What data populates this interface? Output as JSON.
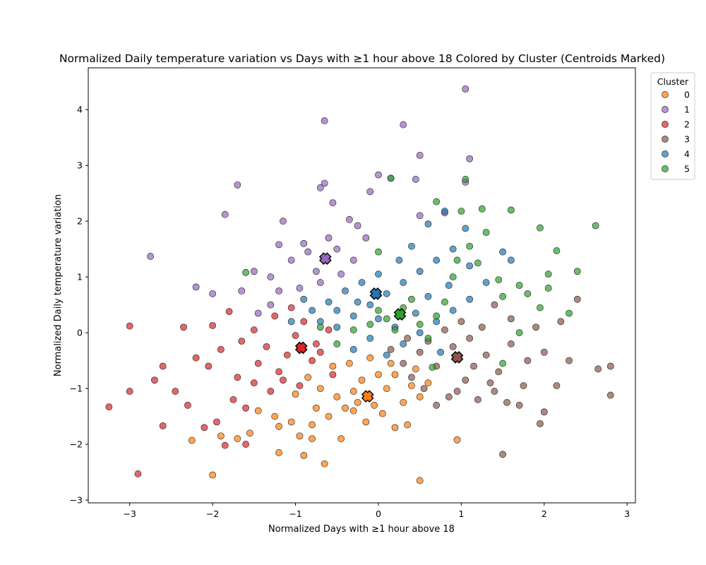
{
  "chart_data": {
    "type": "scatter",
    "title": "Normalized Daily temperature variation vs Days with ≥1 hour above 18 Colored by Cluster (Centroids Marked)",
    "xlabel": "Normalized Days with ≥1 hour above 18",
    "ylabel": "Normalized Daily temperature variation",
    "xlim": [
      -3.5,
      3.1
    ],
    "ylim": [
      -3.05,
      4.75
    ],
    "xticks": [
      -3,
      -2,
      -1,
      0,
      1,
      2,
      3
    ],
    "yticks": [
      -3,
      -2,
      -1,
      0,
      1,
      2,
      3,
      4
    ],
    "grid": false,
    "legend": {
      "title": "Cluster",
      "placement": "top-right outside"
    },
    "series": [
      {
        "name": "0",
        "color": "#ff7f0e",
        "centroid": [
          -0.13,
          -1.14
        ],
        "points": [
          [
            -0.95,
            -1.85
          ],
          [
            -1.2,
            -2.15
          ],
          [
            -1.05,
            -1.6
          ],
          [
            -0.8,
            -1.9
          ],
          [
            -0.6,
            -1.5
          ],
          [
            -0.4,
            -1.35
          ],
          [
            -0.3,
            -1.05
          ],
          [
            -0.2,
            -0.85
          ],
          [
            -0.05,
            -1.3
          ],
          [
            0.1,
            -1.0
          ],
          [
            0.2,
            -0.75
          ],
          [
            0.3,
            -1.25
          ],
          [
            0.4,
            -0.95
          ],
          [
            0.5,
            -1.15
          ],
          [
            -0.7,
            -1.0
          ],
          [
            -0.85,
            -0.8
          ],
          [
            -1.0,
            -1.1
          ],
          [
            -1.25,
            -1.5
          ],
          [
            -1.45,
            -1.4
          ],
          [
            -1.7,
            -1.9
          ],
          [
            -2.0,
            -2.55
          ],
          [
            -1.9,
            -1.85
          ],
          [
            -1.55,
            -1.8
          ],
          [
            -0.9,
            -2.2
          ],
          [
            -0.65,
            -2.35
          ],
          [
            -0.45,
            -1.9
          ],
          [
            -0.15,
            -1.6
          ],
          [
            0.05,
            -1.45
          ],
          [
            0.35,
            -1.65
          ],
          [
            0.2,
            -1.7
          ],
          [
            -0.55,
            -0.6
          ],
          [
            -0.35,
            -0.55
          ],
          [
            -0.1,
            -0.45
          ],
          [
            0.15,
            -0.55
          ],
          [
            0.45,
            -0.65
          ],
          [
            0.6,
            -0.9
          ],
          [
            -0.25,
            -1.25
          ],
          [
            -0.5,
            -1.15
          ],
          [
            -0.75,
            -1.35
          ],
          [
            0.0,
            -0.75
          ],
          [
            0.5,
            -2.65
          ],
          [
            0.95,
            -1.92
          ],
          [
            -2.25,
            -1.93
          ],
          [
            -1.2,
            -1.68
          ],
          [
            -0.3,
            -1.4
          ],
          [
            -0.8,
            -1.65
          ]
        ]
      },
      {
        "name": "1",
        "color": "#9467bd",
        "centroid": [
          -0.64,
          1.33
        ],
        "points": [
          [
            1.05,
            4.37
          ],
          [
            -0.65,
            3.8
          ],
          [
            0.3,
            3.73
          ],
          [
            -0.65,
            2.68
          ],
          [
            -0.7,
            2.6
          ],
          [
            -1.7,
            2.65
          ],
          [
            -0.55,
            2.33
          ],
          [
            -1.85,
            2.12
          ],
          [
            -2.75,
            1.37
          ],
          [
            -0.1,
            2.53
          ],
          [
            0.0,
            2.83
          ],
          [
            0.15,
            2.77
          ],
          [
            0.5,
            3.18
          ],
          [
            1.1,
            3.12
          ],
          [
            1.05,
            2.7
          ],
          [
            0.45,
            2.75
          ],
          [
            -0.35,
            2.03
          ],
          [
            -0.25,
            1.92
          ],
          [
            -0.15,
            1.7
          ],
          [
            -1.15,
            2.0
          ],
          [
            -1.2,
            1.58
          ],
          [
            -0.9,
            1.6
          ],
          [
            -0.5,
            1.5
          ],
          [
            -0.3,
            1.3
          ],
          [
            -0.85,
            1.45
          ],
          [
            -0.75,
            1.1
          ],
          [
            -1.05,
            1.3
          ],
          [
            -1.3,
            1.0
          ],
          [
            -1.5,
            1.1
          ],
          [
            -1.65,
            0.75
          ],
          [
            -2.0,
            0.7
          ],
          [
            -2.2,
            0.82
          ],
          [
            -1.2,
            0.75
          ],
          [
            -0.95,
            0.8
          ],
          [
            -0.7,
            0.9
          ],
          [
            -0.45,
            1.05
          ],
          [
            -0.6,
            1.7
          ],
          [
            0.5,
            2.1
          ],
          [
            0.8,
            2.15
          ],
          [
            -1.3,
            0.5
          ],
          [
            -1.45,
            0.35
          ]
        ]
      },
      {
        "name": "2",
        "color": "#d62728",
        "centroid": [
          -0.93,
          -0.27
        ],
        "points": [
          [
            -3.25,
            -1.33
          ],
          [
            -3.0,
            0.12
          ],
          [
            -3.0,
            -1.05
          ],
          [
            -2.9,
            -2.53
          ],
          [
            -2.6,
            -1.67
          ],
          [
            -2.45,
            -1.05
          ],
          [
            -2.3,
            -1.3
          ],
          [
            -2.2,
            -0.45
          ],
          [
            -2.05,
            -0.6
          ],
          [
            -1.95,
            -1.6
          ],
          [
            -1.85,
            -2.02
          ],
          [
            -1.75,
            -1.2
          ],
          [
            -1.7,
            -0.8
          ],
          [
            -1.6,
            -1.35
          ],
          [
            -1.5,
            -0.9
          ],
          [
            -1.45,
            -0.55
          ],
          [
            -1.35,
            -0.25
          ],
          [
            -1.3,
            -1.05
          ],
          [
            -1.2,
            -0.7
          ],
          [
            -1.1,
            -0.4
          ],
          [
            -1.0,
            -0.05
          ],
          [
            -0.9,
            0.2
          ],
          [
            -0.8,
            -0.5
          ],
          [
            -0.7,
            -0.35
          ],
          [
            -0.6,
            0.05
          ],
          [
            -0.55,
            -0.75
          ],
          [
            -1.05,
            0.45
          ],
          [
            -1.25,
            0.3
          ],
          [
            -1.5,
            0.05
          ],
          [
            -1.8,
            0.38
          ],
          [
            -2.0,
            0.13
          ],
          [
            -2.35,
            0.1
          ],
          [
            -2.6,
            -0.6
          ],
          [
            -2.7,
            -0.85
          ],
          [
            -1.9,
            -0.3
          ],
          [
            -1.65,
            -0.15
          ],
          [
            -0.95,
            -0.95
          ],
          [
            -1.15,
            -0.85
          ],
          [
            -0.75,
            -0.2
          ],
          [
            -2.1,
            -1.7
          ],
          [
            -1.6,
            -2.0
          ]
        ]
      },
      {
        "name": "3",
        "color": "#8c564b",
        "centroid": [
          0.95,
          -0.44
        ],
        "points": [
          [
            2.8,
            -0.6
          ],
          [
            2.8,
            -1.12
          ],
          [
            2.65,
            -0.65
          ],
          [
            2.3,
            -0.5
          ],
          [
            2.15,
            -0.95
          ],
          [
            2.0,
            -1.42
          ],
          [
            1.95,
            -1.63
          ],
          [
            1.5,
            -2.18
          ],
          [
            1.7,
            -1.3
          ],
          [
            1.75,
            -0.95
          ],
          [
            1.4,
            -1.05
          ],
          [
            1.2,
            -1.2
          ],
          [
            1.05,
            -0.85
          ],
          [
            0.85,
            -1.15
          ],
          [
            0.7,
            -1.3
          ],
          [
            0.55,
            -1.0
          ],
          [
            0.4,
            -0.8
          ],
          [
            0.3,
            -0.55
          ],
          [
            0.5,
            -0.35
          ],
          [
            0.7,
            -0.6
          ],
          [
            0.9,
            -0.25
          ],
          [
            1.1,
            -0.1
          ],
          [
            1.3,
            -0.4
          ],
          [
            1.45,
            -0.7
          ],
          [
            1.6,
            -0.2
          ],
          [
            1.8,
            -0.5
          ],
          [
            2.0,
            -0.35
          ],
          [
            2.2,
            0.2
          ],
          [
            2.4,
            0.6
          ],
          [
            1.9,
            0.1
          ],
          [
            1.6,
            0.25
          ],
          [
            1.4,
            0.5
          ],
          [
            1.25,
            0.1
          ],
          [
            1.0,
            0.2
          ],
          [
            0.8,
            0.05
          ],
          [
            0.6,
            -0.15
          ],
          [
            0.35,
            -0.1
          ],
          [
            0.15,
            -0.3
          ],
          [
            1.15,
            -0.6
          ],
          [
            1.35,
            -0.9
          ],
          [
            0.95,
            -1.05
          ],
          [
            1.55,
            -1.25
          ]
        ]
      },
      {
        "name": "4",
        "color": "#1f77b4",
        "centroid": [
          -0.03,
          0.7
        ],
        "points": [
          [
            0.8,
            2.18
          ],
          [
            1.05,
            1.87
          ],
          [
            0.6,
            1.95
          ],
          [
            0.4,
            1.55
          ],
          [
            0.25,
            1.3
          ],
          [
            0.0,
            1.05
          ],
          [
            -0.2,
            0.9
          ],
          [
            -0.4,
            0.75
          ],
          [
            -0.6,
            0.55
          ],
          [
            -0.8,
            0.4
          ],
          [
            -0.7,
            0.2
          ],
          [
            -0.5,
            0.1
          ],
          [
            -0.3,
            0.3
          ],
          [
            -0.1,
            0.5
          ],
          [
            0.1,
            0.7
          ],
          [
            0.3,
            0.9
          ],
          [
            0.5,
            1.1
          ],
          [
            0.7,
            1.3
          ],
          [
            0.9,
            1.5
          ],
          [
            1.1,
            1.2
          ],
          [
            1.5,
            1.45
          ],
          [
            1.6,
            1.3
          ],
          [
            1.3,
            0.9
          ],
          [
            1.1,
            0.6
          ],
          [
            0.9,
            0.4
          ],
          [
            0.7,
            0.2
          ],
          [
            0.5,
            0.0
          ],
          [
            0.3,
            -0.2
          ],
          [
            0.1,
            -0.4
          ],
          [
            -0.1,
            -0.1
          ],
          [
            -0.3,
            -0.3
          ],
          [
            -0.5,
            0.4
          ],
          [
            -0.9,
            0.6
          ],
          [
            -1.05,
            0.2
          ],
          [
            0.2,
            0.1
          ],
          [
            0.6,
            0.65
          ],
          [
            0.85,
            0.85
          ],
          [
            -0.25,
            0.55
          ],
          [
            0.0,
            0.25
          ],
          [
            0.45,
            0.35
          ],
          [
            0.75,
            -0.35
          ]
        ]
      },
      {
        "name": "5",
        "color": "#2ca02c",
        "centroid": [
          0.26,
          0.33
        ],
        "points": [
          [
            2.62,
            1.92
          ],
          [
            2.4,
            1.1
          ],
          [
            2.3,
            0.35
          ],
          [
            2.15,
            1.47
          ],
          [
            2.05,
            1.05
          ],
          [
            2.05,
            0.8
          ],
          [
            1.95,
            1.88
          ],
          [
            1.95,
            0.45
          ],
          [
            1.8,
            0.7
          ],
          [
            1.7,
            0.85
          ],
          [
            1.6,
            2.2
          ],
          [
            1.5,
            0.65
          ],
          [
            1.45,
            0.95
          ],
          [
            1.3,
            1.8
          ],
          [
            1.25,
            2.22
          ],
          [
            1.2,
            1.25
          ],
          [
            1.1,
            1.55
          ],
          [
            1.0,
            2.18
          ],
          [
            0.95,
            1.3
          ],
          [
            0.9,
            1.0
          ],
          [
            0.8,
            0.55
          ],
          [
            0.7,
            0.3
          ],
          [
            0.6,
            -0.1
          ],
          [
            0.5,
            0.15
          ],
          [
            0.4,
            0.6
          ],
          [
            0.3,
            0.45
          ],
          [
            0.2,
            0.05
          ],
          [
            0.1,
            0.25
          ],
          [
            0.0,
            0.4
          ],
          [
            -0.1,
            0.15
          ],
          [
            -0.3,
            0.05
          ],
          [
            -0.5,
            -0.2
          ],
          [
            -0.7,
            0.1
          ],
          [
            -1.6,
            1.08
          ],
          [
            0.7,
            2.35
          ],
          [
            1.05,
            2.75
          ],
          [
            0.15,
            2.77
          ],
          [
            0.0,
            1.45
          ],
          [
            1.7,
            0.0
          ],
          [
            1.5,
            -0.55
          ],
          [
            0.65,
            -0.62
          ]
        ]
      }
    ]
  }
}
